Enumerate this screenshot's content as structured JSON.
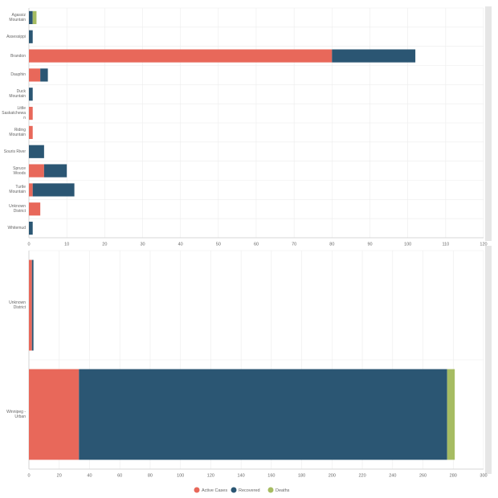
{
  "chart_data": [
    {
      "type": "stacked-bar-horizontal",
      "categories": [
        "Agassiz Mountain",
        "Assessippi",
        "Brandon",
        "Dauphin",
        "Duck Mountain",
        "Little Saskatchewan",
        "Riding Mountain",
        "Souris River",
        "Spruce Woods",
        "Turtle Mountain",
        "Unknown District",
        "Whitemud"
      ],
      "series": [
        {
          "color": "#e8685a",
          "values": [
            0,
            0,
            80,
            3,
            0,
            1,
            1,
            0,
            4,
            1,
            3,
            0
          ]
        },
        {
          "color": "#2b5673",
          "values": [
            1,
            1,
            22,
            2,
            1,
            0,
            0,
            4,
            6,
            11,
            0,
            1
          ]
        },
        {
          "color": "#a6bc62",
          "values": [
            1,
            0,
            0,
            0,
            0,
            0,
            0,
            0,
            0,
            0,
            0,
            0
          ]
        }
      ],
      "xlim": [
        0,
        120
      ],
      "xticks": [
        0,
        10,
        20,
        30,
        40,
        50,
        60,
        70,
        80,
        90,
        100,
        110,
        120
      ],
      "grid": true
    },
    {
      "type": "stacked-bar-horizontal",
      "categories": [
        "Unknown District",
        "Winnipeg - Urban"
      ],
      "series": [
        {
          "name": "Active Cases",
          "color": "#e8685a",
          "values": [
            2,
            33
          ]
        },
        {
          "name": "Recovered",
          "color": "#2b5673",
          "values": [
            1,
            243
          ]
        },
        {
          "name": "Deaths",
          "color": "#a6bc62",
          "values": [
            0,
            5
          ]
        }
      ],
      "xlim": [
        0,
        300
      ],
      "xticks": [
        0,
        20,
        40,
        60,
        80,
        100,
        120,
        140,
        160,
        180,
        200,
        220,
        240,
        260,
        280,
        300
      ],
      "grid": true,
      "legend": "bottom"
    }
  ]
}
